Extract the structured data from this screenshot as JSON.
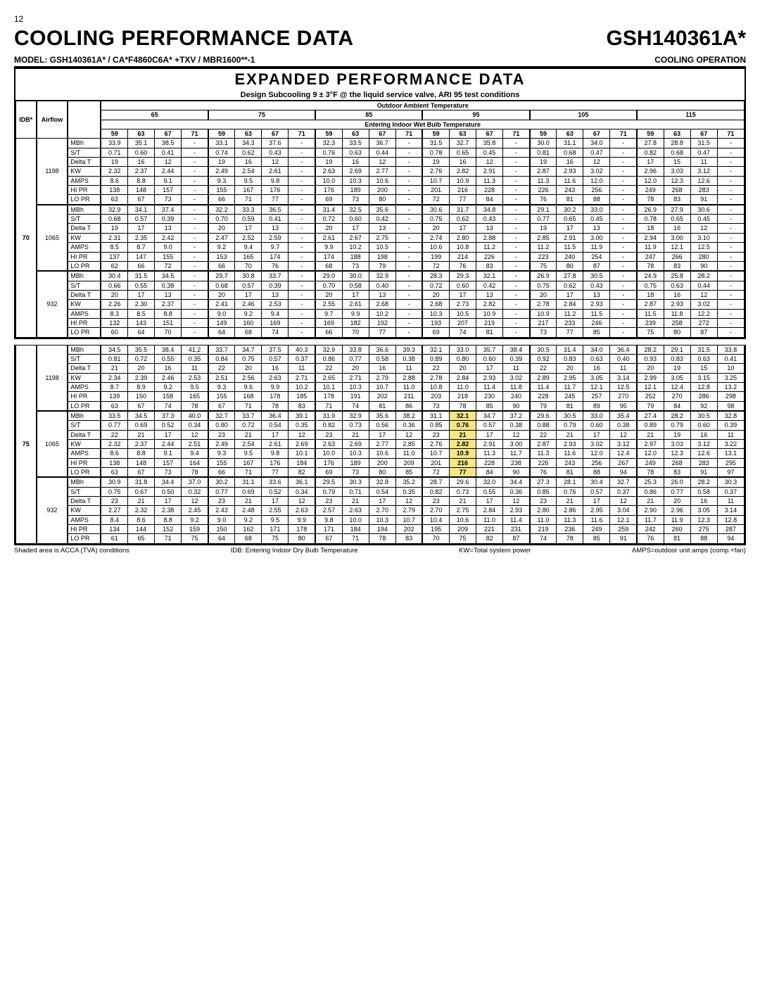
{
  "page_number": "12",
  "title": "COOLING PERFORMANCE DATA",
  "model_header": "GSH140361A*",
  "model_line": "MODEL:  GSH140361A* / CA*F4860C6A* +TXV / MBR1600**-1",
  "mode": "COOLING OPERATION",
  "super_header": "EXPANDED PERFORMANCE DATA",
  "design_line": "Design Subcooling 9 ± 3°F @ the liquid service valve, ARI 95 test conditions",
  "oat_label": "Outdoor Ambient Temperature",
  "ewb_label": "Entering Indoor Wet Bulb Temperature",
  "idb_label": "IDB*",
  "airflow_label": "Airflow",
  "oat_groups": [
    "65",
    "75",
    "85",
    "95",
    "105",
    "115"
  ],
  "ewb_cols": [
    "59",
    "63",
    "67",
    "71"
  ],
  "metrics": [
    "MBh",
    "S/T",
    "Delta T",
    "KW",
    "AMPS",
    "HI PR",
    "LO PR"
  ],
  "footnote_left": "Shaded area is ACCA (TVA) conditions",
  "footnote_mid": "IDB: Entering Indoor Dry Bulb Temperature",
  "footnote_kw": "KW=Total system power",
  "footnote_amps": "AMPS=outdoor unit amps (comp.+fan)",
  "idb_values": [
    "70",
    "75"
  ],
  "airflows": [
    "1198",
    "1065",
    "932"
  ],
  "shaded_group": {
    "idb": "75",
    "airflow": "1065",
    "oat": "95",
    "ewb": "63"
  },
  "data70": {
    "1198": {
      "MBh": [
        "33.9",
        "35.1",
        "38.5",
        "-",
        "33.1",
        "34.3",
        "37.6",
        "-",
        "32.3",
        "33.5",
        "36.7",
        "-",
        "31.5",
        "32.7",
        "35.8",
        "-",
        "30.0",
        "31.1",
        "34.0",
        "-",
        "27.8",
        "28.8",
        "31.5",
        "-"
      ],
      "S/T": [
        "0.71",
        "0.60",
        "0.41",
        "-",
        "0.74",
        "0.62",
        "0.43",
        "-",
        "0.76",
        "0.63",
        "0.44",
        "-",
        "0.78",
        "0.65",
        "0.45",
        "-",
        "0.81",
        "0.68",
        "0.47",
        "-",
        "0.82",
        "0.68",
        "0.47",
        "-"
      ],
      "Delta T": [
        "19",
        "16",
        "12",
        "-",
        "19",
        "16",
        "12",
        "-",
        "19",
        "16",
        "12",
        "-",
        "19",
        "16",
        "12",
        "-",
        "19",
        "16",
        "12",
        "-",
        "17",
        "15",
        "11",
        "-"
      ],
      "KW": [
        "2.32",
        "2.37",
        "2.44",
        "-",
        "2.49",
        "2.54",
        "2.61",
        "-",
        "2.63",
        "2.69",
        "2.77",
        "-",
        "2.76",
        "2.82",
        "2.91",
        "-",
        "2.87",
        "2.93",
        "3.02",
        "-",
        "2.96",
        "3.03",
        "3.12",
        "-"
      ],
      "AMPS": [
        "8.6",
        "8.8",
        "9.1",
        "-",
        "9.3",
        "9.5",
        "9.8",
        "-",
        "10.0",
        "10.3",
        "10.6",
        "-",
        "10.7",
        "10.9",
        "11.3",
        "-",
        "11.3",
        "11.6",
        "12.0",
        "-",
        "12.0",
        "12.3",
        "12.6",
        "-"
      ],
      "HI PR": [
        "138",
        "148",
        "157",
        "-",
        "155",
        "167",
        "176",
        "-",
        "176",
        "189",
        "200",
        "-",
        "201",
        "216",
        "228",
        "-",
        "226",
        "243",
        "256",
        "-",
        "249",
        "268",
        "283",
        "-"
      ],
      "LO PR": [
        "63",
        "67",
        "73",
        "-",
        "66",
        "71",
        "77",
        "-",
        "69",
        "73",
        "80",
        "-",
        "72",
        "77",
        "84",
        "-",
        "76",
        "81",
        "88",
        "-",
        "78",
        "83",
        "91",
        "-"
      ]
    },
    "1065": {
      "MBh": [
        "32.9",
        "34.1",
        "37.4",
        "-",
        "32.2",
        "33.3",
        "36.5",
        "-",
        "31.4",
        "32.5",
        "35.6",
        "-",
        "30.6",
        "31.7",
        "34.8",
        "-",
        "29.1",
        "30.2",
        "33.0",
        "-",
        "26.9",
        "27.9",
        "30.6",
        "-"
      ],
      "S/T": [
        "0.68",
        "0.57",
        "0.39",
        "-",
        "0.70",
        "0.59",
        "0.41",
        "-",
        "0.72",
        "0.60",
        "0.42",
        "-",
        "0.75",
        "0.62",
        "0.43",
        "-",
        "0.77",
        "0.65",
        "0.45",
        "-",
        "0.78",
        "0.65",
        "0.45",
        "-"
      ],
      "Delta T": [
        "19",
        "17",
        "13",
        "-",
        "20",
        "17",
        "13",
        "-",
        "20",
        "17",
        "13",
        "-",
        "20",
        "17",
        "13",
        "-",
        "19",
        "17",
        "13",
        "-",
        "18",
        "16",
        "12",
        "-"
      ],
      "KW": [
        "2.31",
        "2.35",
        "2.42",
        "-",
        "2.47",
        "2.52",
        "2.59",
        "-",
        "2.61",
        "2.67",
        "2.75",
        "-",
        "2.74",
        "2.80",
        "2.88",
        "-",
        "2.85",
        "2.91",
        "3.00",
        "-",
        "2.94",
        "3.00",
        "3.10",
        "-"
      ],
      "AMPS": [
        "8.5",
        "8.7",
        "9.0",
        "-",
        "9.2",
        "9.4",
        "9.7",
        "-",
        "9.9",
        "10.2",
        "10.5",
        "-",
        "10.6",
        "10.8",
        "11.2",
        "-",
        "11.2",
        "11.5",
        "11.9",
        "-",
        "11.9",
        "12.1",
        "12.5",
        "-"
      ],
      "HI PR": [
        "137",
        "147",
        "155",
        "-",
        "153",
        "165",
        "174",
        "-",
        "174",
        "188",
        "198",
        "-",
        "199",
        "214",
        "226",
        "-",
        "223",
        "240",
        "254",
        "-",
        "247",
        "266",
        "280",
        "-"
      ],
      "LO PR": [
        "62",
        "66",
        "72",
        "-",
        "66",
        "70",
        "76",
        "-",
        "68",
        "73",
        "79",
        "-",
        "72",
        "76",
        "83",
        "-",
        "75",
        "80",
        "87",
        "-",
        "78",
        "83",
        "90",
        "-"
      ]
    },
    "932": {
      "MBh": [
        "30.4",
        "31.5",
        "34.5",
        "-",
        "29.7",
        "30.8",
        "33.7",
        "-",
        "29.0",
        "30.0",
        "32.9",
        "-",
        "28.3",
        "29.3",
        "32.1",
        "-",
        "26.9",
        "27.8",
        "30.5",
        "-",
        "24.9",
        "25.8",
        "28.2",
        "-"
      ],
      "S/T": [
        "0.66",
        "0.55",
        "0.38",
        "-",
        "0.68",
        "0.57",
        "0.39",
        "-",
        "0.70",
        "0.58",
        "0.40",
        "-",
        "0.72",
        "0.60",
        "0.42",
        "-",
        "0.75",
        "0.62",
        "0.43",
        "-",
        "0.75",
        "0.63",
        "0.44",
        "-"
      ],
      "Delta T": [
        "20",
        "17",
        "13",
        "-",
        "20",
        "17",
        "13",
        "-",
        "20",
        "17",
        "13",
        "-",
        "20",
        "17",
        "13",
        "-",
        "20",
        "17",
        "13",
        "-",
        "18",
        "16",
        "12",
        "-"
      ],
      "KW": [
        "2.26",
        "2.30",
        "2.37",
        "-",
        "2.41",
        "2.46",
        "2.53",
        "-",
        "2.55",
        "2.61",
        "2.68",
        "-",
        "2.68",
        "2.73",
        "2.82",
        "-",
        "2.78",
        "2.84",
        "2.93",
        "-",
        "2.87",
        "2.93",
        "3.02",
        "-"
      ],
      "AMPS": [
        "8.3",
        "8.5",
        "8.8",
        "-",
        "9.0",
        "9.2",
        "9.4",
        "-",
        "9.7",
        "9.9",
        "10.2",
        "-",
        "10.3",
        "10.5",
        "10.9",
        "-",
        "10.9",
        "11.2",
        "11.5",
        "-",
        "11.5",
        "11.8",
        "12.2",
        "-"
      ],
      "HI PR": [
        "132",
        "143",
        "151",
        "-",
        "149",
        "160",
        "169",
        "-",
        "169",
        "182",
        "192",
        "-",
        "193",
        "207",
        "219",
        "-",
        "217",
        "233",
        "246",
        "-",
        "239",
        "258",
        "272",
        "-"
      ],
      "LO PR": [
        "60",
        "64",
        "70",
        "-",
        "64",
        "68",
        "74",
        "-",
        "66",
        "70",
        "77",
        "-",
        "69",
        "74",
        "81",
        "-",
        "73",
        "77",
        "85",
        "-",
        "75",
        "80",
        "87",
        "-"
      ]
    }
  },
  "data75": {
    "1198": {
      "MBh": [
        "34.5",
        "35.5",
        "38.4",
        "41.2",
        "33.7",
        "34.7",
        "37.5",
        "40.3",
        "32.9",
        "33.8",
        "36.6",
        "39.3",
        "32.1",
        "33.0",
        "35.7",
        "38.4",
        "30.5",
        "31.4",
        "34.0",
        "36.4",
        "28.2",
        "29.1",
        "31.5",
        "33.8"
      ],
      "S/T": [
        "0.81",
        "0.72",
        "0.55",
        "0.35",
        "0.84",
        "0.75",
        "0.57",
        "0.37",
        "0.86",
        "0.77",
        "0.58",
        "0.38",
        "0.89",
        "0.80",
        "0.60",
        "0.39",
        "0.92",
        "0.83",
        "0.63",
        "0.40",
        "0.93",
        "0.83",
        "0.63",
        "0.41"
      ],
      "Delta T": [
        "21",
        "20",
        "16",
        "11",
        "22",
        "20",
        "16",
        "11",
        "22",
        "20",
        "16",
        "11",
        "22",
        "20",
        "17",
        "11",
        "22",
        "20",
        "16",
        "11",
        "20",
        "19",
        "15",
        "10"
      ],
      "KW": [
        "2.34",
        "2.39",
        "2.46",
        "2.53",
        "2.51",
        "2.56",
        "2.63",
        "2.71",
        "2.65",
        "2.71",
        "2.79",
        "2.88",
        "2.78",
        "2.84",
        "2.93",
        "3.02",
        "2.89",
        "2.95",
        "3.05",
        "3.14",
        "2.99",
        "3.05",
        "3.15",
        "3.25"
      ],
      "AMPS": [
        "8.7",
        "8.9",
        "9.2",
        "9.5",
        "9.3",
        "9.6",
        "9.9",
        "10.2",
        "10.1",
        "10.3",
        "10.7",
        "11.0",
        "10.8",
        "11.0",
        "11.4",
        "11.8",
        "11.4",
        "11.7",
        "12.1",
        "12.5",
        "12.1",
        "12.4",
        "12.8",
        "13.2"
      ],
      "HI PR": [
        "139",
        "150",
        "158",
        "165",
        "155",
        "168",
        "178",
        "185",
        "178",
        "191",
        "202",
        "211",
        "203",
        "218",
        "230",
        "240",
        "228",
        "245",
        "257",
        "270",
        "252",
        "270",
        "286",
        "298"
      ],
      "LO PR": [
        "63",
        "67",
        "74",
        "78",
        "67",
        "71",
        "78",
        "83",
        "71",
        "74",
        "81",
        "86",
        "73",
        "78",
        "85",
        "90",
        "79",
        "81",
        "89",
        "95",
        "79",
        "84",
        "92",
        "98"
      ]
    },
    "1065": {
      "MBh": [
        "33.5",
        "34.5",
        "37.3",
        "40.0",
        "32.7",
        "33.7",
        "36.4",
        "39.1",
        "31.9",
        "32.9",
        "35.6",
        "38.2",
        "31.1",
        "32.1",
        "34.7",
        "37.2",
        "29.6",
        "30.5",
        "33.0",
        "35.4",
        "27.4",
        "28.2",
        "30.5",
        "32.8"
      ],
      "S/T": [
        "0.77",
        "0.69",
        "0.52",
        "0.34",
        "0.80",
        "0.72",
        "0.54",
        "0.35",
        "0.82",
        "0.73",
        "0.56",
        "0.36",
        "0.85",
        "0.76",
        "0.57",
        "0.38",
        "0.88",
        "0.79",
        "0.60",
        "0.38",
        "0.89",
        "0.79",
        "0.60",
        "0.39"
      ],
      "Delta T": [
        "22",
        "21",
        "17",
        "12",
        "23",
        "21",
        "17",
        "12",
        "23",
        "21",
        "17",
        "12",
        "23",
        "21",
        "17",
        "12",
        "22",
        "21",
        "17",
        "12",
        "21",
        "19",
        "16",
        "11"
      ],
      "KW": [
        "2.32",
        "2.37",
        "2.44",
        "2.51",
        "2.49",
        "2.54",
        "2.61",
        "2.69",
        "2.63",
        "2.69",
        "2.77",
        "2.85",
        "2.76",
        "2.82",
        "2.91",
        "3.00",
        "2.87",
        "2.93",
        "3.02",
        "3.12",
        "2.97",
        "3.03",
        "3.12",
        "3.22"
      ],
      "AMPS": [
        "8.6",
        "8.8",
        "9.1",
        "9.4",
        "9.3",
        "9.5",
        "9.8",
        "10.1",
        "10.0",
        "10.3",
        "10.6",
        "11.0",
        "10.7",
        "10.9",
        "11.3",
        "11.7",
        "11.3",
        "11.6",
        "12.0",
        "12.4",
        "12.0",
        "12.3",
        "12.6",
        "13.1"
      ],
      "HI PR": [
        "138",
        "148",
        "157",
        "164",
        "155",
        "167",
        "176",
        "184",
        "176",
        "189",
        "200",
        "209",
        "201",
        "216",
        "228",
        "238",
        "226",
        "243",
        "256",
        "267",
        "249",
        "268",
        "283",
        "295"
      ],
      "LO PR": [
        "63",
        "67",
        "73",
        "78",
        "66",
        "71",
        "77",
        "82",
        "69",
        "73",
        "80",
        "85",
        "72",
        "77",
        "84",
        "90",
        "76",
        "81",
        "88",
        "94",
        "78",
        "83",
        "91",
        "97"
      ]
    },
    "932": {
      "MBh": [
        "30.9",
        "31.8",
        "34.4",
        "37.0",
        "30.2",
        "31.1",
        "33.6",
        "36.1",
        "29.5",
        "30.3",
        "32.8",
        "35.2",
        "28.7",
        "29.6",
        "32.0",
        "34.4",
        "27.3",
        "28.1",
        "30.4",
        "32.7",
        "25.3",
        "26.0",
        "28.2",
        "30.3"
      ],
      "S/T": [
        "0.75",
        "0.67",
        "0.50",
        "0.32",
        "0.77",
        "0.69",
        "0.52",
        "0.34",
        "0.79",
        "0.71",
        "0.54",
        "0.35",
        "0.82",
        "0.73",
        "0.55",
        "0.36",
        "0.85",
        "0.76",
        "0.57",
        "0.37",
        "0.86",
        "0.77",
        "0.58",
        "0.37"
      ],
      "Delta T": [
        "23",
        "21",
        "17",
        "12",
        "23",
        "21",
        "17",
        "12",
        "23",
        "21",
        "17",
        "12",
        "23",
        "21",
        "17",
        "12",
        "23",
        "21",
        "17",
        "12",
        "21",
        "20",
        "16",
        "11"
      ],
      "KW": [
        "2.27",
        "2.32",
        "2.38",
        "2.45",
        "2.43",
        "2.48",
        "2.55",
        "2.63",
        "2.57",
        "2.63",
        "2.70",
        "2.79",
        "2.70",
        "2.75",
        "2.84",
        "2.93",
        "2.80",
        "2.86",
        "2.95",
        "3.04",
        "2.90",
        "2.96",
        "3.05",
        "3.14"
      ],
      "AMPS": [
        "8.4",
        "8.6",
        "8.8",
        "9.2",
        "9.0",
        "9.2",
        "9.5",
        "9.9",
        "9.8",
        "10.0",
        "10.3",
        "10.7",
        "10.4",
        "10.6",
        "11.0",
        "11.4",
        "11.0",
        "11.3",
        "11.6",
        "12.1",
        "11.7",
        "11.9",
        "12.3",
        "12.8"
      ],
      "HI PR": [
        "134",
        "144",
        "152",
        "159",
        "150",
        "162",
        "171",
        "178",
        "171",
        "184",
        "194",
        "202",
        "195",
        "209",
        "221",
        "231",
        "219",
        "236",
        "249",
        "259",
        "242",
        "260",
        "275",
        "287"
      ],
      "LO PR": [
        "61",
        "65",
        "71",
        "75",
        "64",
        "68",
        "75",
        "80",
        "67",
        "71",
        "78",
        "83",
        "70",
        "75",
        "82",
        "87",
        "74",
        "78",
        "85",
        "91",
        "76",
        "81",
        "88",
        "94"
      ]
    }
  }
}
